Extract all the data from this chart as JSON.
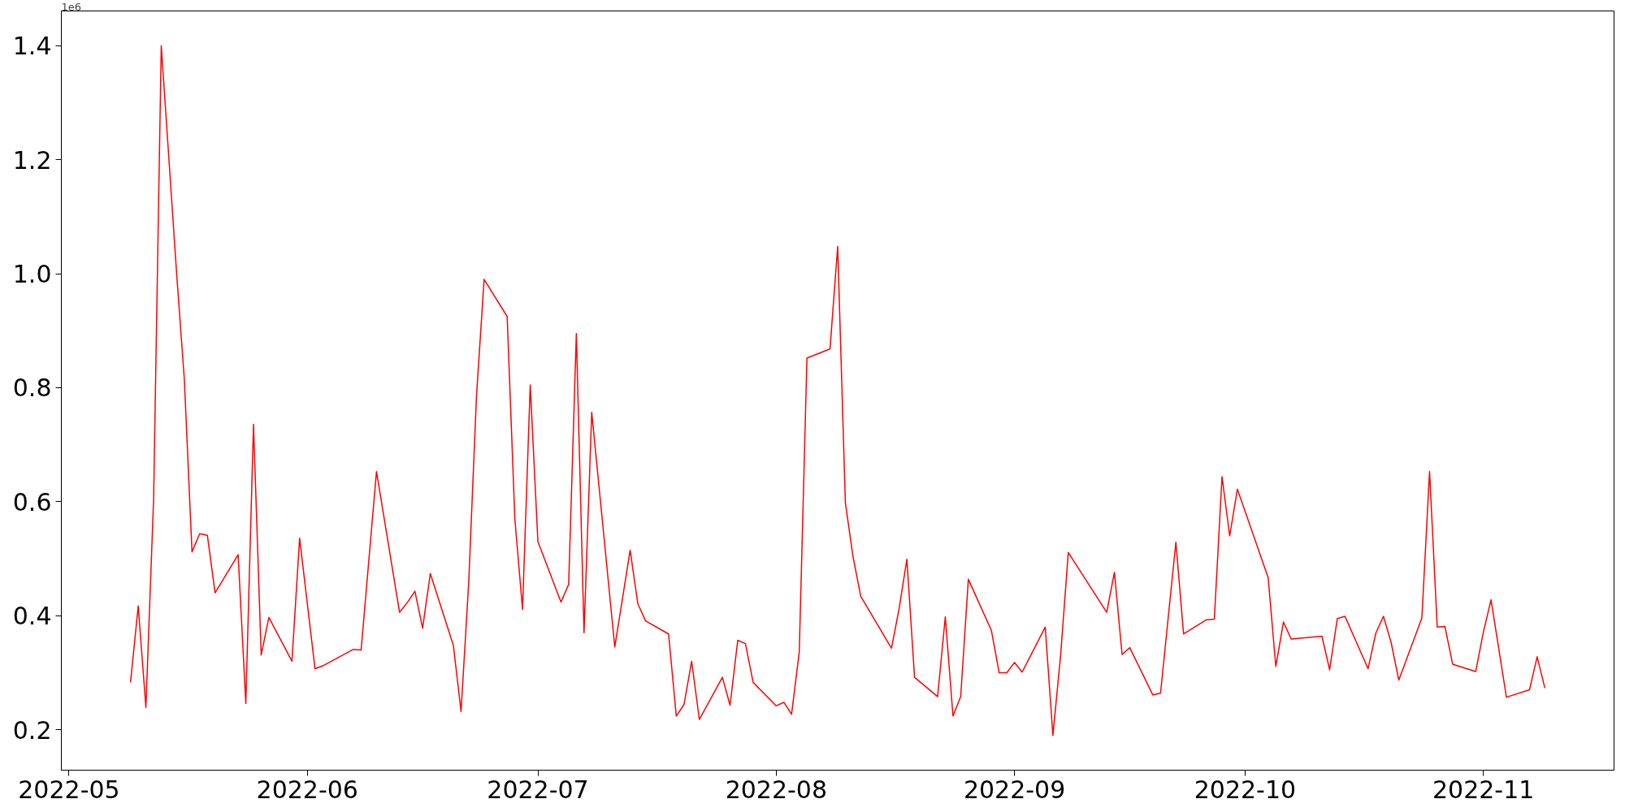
{
  "chart_data": {
    "type": "line",
    "x": [
      "2022-05-09",
      "2022-05-10",
      "2022-05-11",
      "2022-05-12",
      "2022-05-13",
      "2022-05-15",
      "2022-05-16",
      "2022-05-17",
      "2022-05-18",
      "2022-05-19",
      "2022-05-20",
      "2022-05-23",
      "2022-05-24",
      "2022-05-25",
      "2022-05-26",
      "2022-05-27",
      "2022-05-30",
      "2022-05-31",
      "2022-06-02",
      "2022-06-03",
      "2022-06-07",
      "2022-06-08",
      "2022-06-10",
      "2022-06-13",
      "2022-06-14",
      "2022-06-15",
      "2022-06-16",
      "2022-06-17",
      "2022-06-20",
      "2022-06-21",
      "2022-06-22",
      "2022-06-23",
      "2022-06-24",
      "2022-06-27",
      "2022-06-28",
      "2022-06-29",
      "2022-06-30",
      "2022-07-01",
      "2022-07-04",
      "2022-07-05",
      "2022-07-06",
      "2022-07-07",
      "2022-07-08",
      "2022-07-11",
      "2022-07-13",
      "2022-07-14",
      "2022-07-15",
      "2022-07-18",
      "2022-07-19",
      "2022-07-20",
      "2022-07-21",
      "2022-07-22",
      "2022-07-25",
      "2022-07-26",
      "2022-07-27",
      "2022-07-28",
      "2022-07-29",
      "2022-08-01",
      "2022-08-02",
      "2022-08-03",
      "2022-08-04",
      "2022-08-05",
      "2022-08-08",
      "2022-08-09",
      "2022-08-10",
      "2022-08-11",
      "2022-08-12",
      "2022-08-16",
      "2022-08-17",
      "2022-08-18",
      "2022-08-19",
      "2022-08-22",
      "2022-08-23",
      "2022-08-24",
      "2022-08-25",
      "2022-08-26",
      "2022-08-29",
      "2022-08-30",
      "2022-08-31",
      "2022-09-01",
      "2022-09-02",
      "2022-09-05",
      "2022-09-06",
      "2022-09-07",
      "2022-09-08",
      "2022-09-13",
      "2022-09-14",
      "2022-09-15",
      "2022-09-16",
      "2022-09-19",
      "2022-09-20",
      "2022-09-22",
      "2022-09-23",
      "2022-09-26",
      "2022-09-27",
      "2022-09-28",
      "2022-09-29",
      "2022-09-30",
      "2022-10-04",
      "2022-10-05",
      "2022-10-06",
      "2022-10-07",
      "2022-10-11",
      "2022-10-12",
      "2022-10-13",
      "2022-10-14",
      "2022-10-17",
      "2022-10-18",
      "2022-10-19",
      "2022-10-20",
      "2022-10-21",
      "2022-10-24",
      "2022-10-25",
      "2022-10-26",
      "2022-10-27",
      "2022-10-28",
      "2022-10-31",
      "2022-11-01",
      "2022-11-02",
      "2022-11-04",
      "2022-11-07",
      "2022-11-08",
      "2022-11-09"
    ],
    "series": [
      {
        "color": "#ff0000",
        "values": [
          0.283,
          0.417,
          0.239,
          0.603,
          1.4,
          1.0,
          0.815,
          0.512,
          0.544,
          0.541,
          0.44,
          0.507,
          0.246,
          0.736,
          0.331,
          0.397,
          0.32,
          0.536,
          0.307,
          0.312,
          0.341,
          0.34,
          0.653,
          0.406,
          0.423,
          0.443,
          0.378,
          0.474,
          0.348,
          0.232,
          0.459,
          0.783,
          0.99,
          0.925,
          0.57,
          0.411,
          0.805,
          0.53,
          0.424,
          0.455,
          0.895,
          0.37,
          0.757,
          0.345,
          0.515,
          0.421,
          0.391,
          0.368,
          0.224,
          0.244,
          0.32,
          0.218,
          0.292,
          0.243,
          0.357,
          0.351,
          0.283,
          0.242,
          0.248,
          0.227,
          0.336,
          0.852,
          0.868,
          1.048,
          0.598,
          0.503,
          0.434,
          0.343,
          0.413,
          0.499,
          0.292,
          0.258,
          0.398,
          0.224,
          0.258,
          0.464,
          0.374,
          0.3,
          0.3,
          0.318,
          0.301,
          0.38,
          0.19,
          0.33,
          0.511,
          0.406,
          0.476,
          0.332,
          0.344,
          0.261,
          0.264,
          0.529,
          0.368,
          0.393,
          0.394,
          0.644,
          0.54,
          0.622,
          0.467,
          0.311,
          0.389,
          0.359,
          0.364,
          0.305,
          0.395,
          0.399,
          0.307,
          0.369,
          0.399,
          0.353,
          0.287,
          0.396,
          0.653,
          0.38,
          0.381,
          0.315,
          0.302,
          0.371,
          0.428,
          0.257,
          0.27,
          0.328,
          0.273
        ]
      }
    ],
    "xlim": [
      "2022-04-30",
      "2022-11-18"
    ],
    "xticks": [
      "2022-05",
      "2022-06",
      "2022-07",
      "2022-08",
      "2022-09",
      "2022-10",
      "2022-11"
    ],
    "ylim": [
      0.129,
      1.461
    ],
    "yticks": [
      0.2,
      0.4,
      0.6,
      0.8,
      {
        "value": 1.0,
        "label": "1.0"
      },
      1.2,
      1.4
    ],
    "annotations": [
      "1e6"
    ],
    "grid": false,
    "marker": "none",
    "line_style": "solid"
  }
}
